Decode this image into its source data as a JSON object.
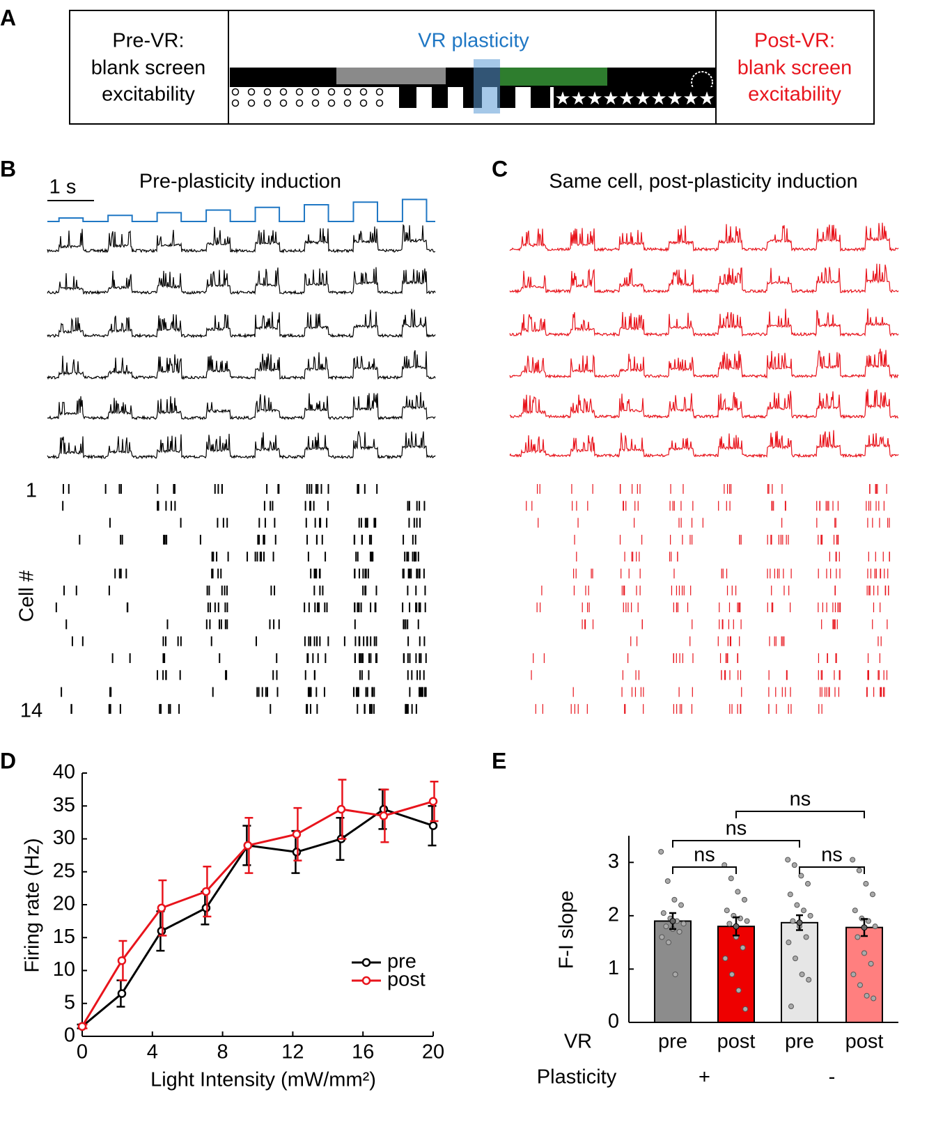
{
  "panel_labels": [
    "A",
    "B",
    "C",
    "D",
    "E"
  ],
  "schematic": {
    "pre": {
      "title": "Pre-VR:",
      "lines": [
        "blank screen",
        "excitability"
      ]
    },
    "vr": "VR plasticity",
    "post": {
      "title": "Post-VR:",
      "lines": [
        "blank screen",
        "excitability"
      ]
    }
  },
  "traces": {
    "scale_label": "1 s",
    "pre_title": "Pre-plasticity induction",
    "post_title": "Same cell, post-plasticity induction",
    "raster_axis_label": "Cell #",
    "raster_first": 1,
    "raster_last": 14
  },
  "chart_data": [
    {
      "type": "line",
      "xlabel": "Light Intensity (mW/mm²)",
      "ylabel": "Firing rate (Hz)",
      "x": [
        0,
        2.26,
        4.52,
        7.06,
        9.44,
        12.22,
        14.76,
        17.18,
        20
      ],
      "series": [
        {
          "name": "pre",
          "color": "#000000",
          "values": [
            1.5,
            6.5,
            16,
            19.5,
            29,
            28,
            30,
            34.5,
            32
          ],
          "errors": [
            0.3,
            2,
            3,
            2.5,
            3,
            3.2,
            3.2,
            3,
            3
          ]
        },
        {
          "name": "post",
          "color": "#e8141c",
          "values": [
            1.5,
            11.5,
            19.5,
            22,
            29,
            30.7,
            34.5,
            33.5,
            35.7
          ],
          "errors": [
            0.3,
            3,
            4.2,
            3.8,
            4.2,
            4,
            4.5,
            4,
            3
          ]
        }
      ],
      "xlim": [
        0,
        20
      ],
      "ylim": [
        0,
        40
      ],
      "xticks": [
        0,
        4,
        8,
        12,
        16,
        20
      ],
      "yticks": [
        0,
        5,
        10,
        15,
        20,
        25,
        30,
        35,
        40
      ],
      "legend": "lower right"
    },
    {
      "type": "bar",
      "ylabel": "F-I slope",
      "categories": [
        "pre",
        "post",
        "pre",
        "post"
      ],
      "values": [
        1.9,
        1.8,
        1.87,
        1.78
      ],
      "errors": [
        0.15,
        0.17,
        0.14,
        0.16
      ],
      "colors": [
        "#8c8c8c",
        "#ee0000",
        "#e6e6e6",
        "#ff7f7f"
      ],
      "points": [
        [
          3.2,
          2.65,
          2.3,
          2.2,
          2.05,
          1.95,
          1.9,
          1.85,
          1.8,
          1.75,
          1.7,
          1.6,
          1.5,
          0.9
        ],
        [
          2.95,
          2.7,
          2.45,
          2.3,
          2.1,
          2.0,
          1.95,
          1.9,
          1.85,
          1.6,
          1.4,
          1.2,
          0.9,
          0.6,
          0.25
        ],
        [
          3.05,
          2.95,
          2.75,
          2.6,
          2.4,
          2.2,
          2.1,
          2.0,
          1.9,
          1.8,
          1.6,
          1.5,
          1.2,
          0.9,
          0.8,
          0.3
        ],
        [
          3.05,
          2.85,
          2.6,
          2.4,
          2.1,
          1.95,
          1.9,
          1.8,
          1.6,
          1.3,
          1.1,
          0.9,
          0.7,
          0.5,
          0.45
        ]
      ],
      "ylim": [
        0,
        3.5
      ],
      "yticks": [
        0,
        1,
        2,
        3
      ],
      "row_labels": {
        "vr": "VR",
        "plasticity": "Plasticity"
      },
      "groups": [
        "+",
        "-"
      ],
      "comparisons": [
        "ns",
        "ns",
        "ns",
        "ns"
      ]
    }
  ]
}
